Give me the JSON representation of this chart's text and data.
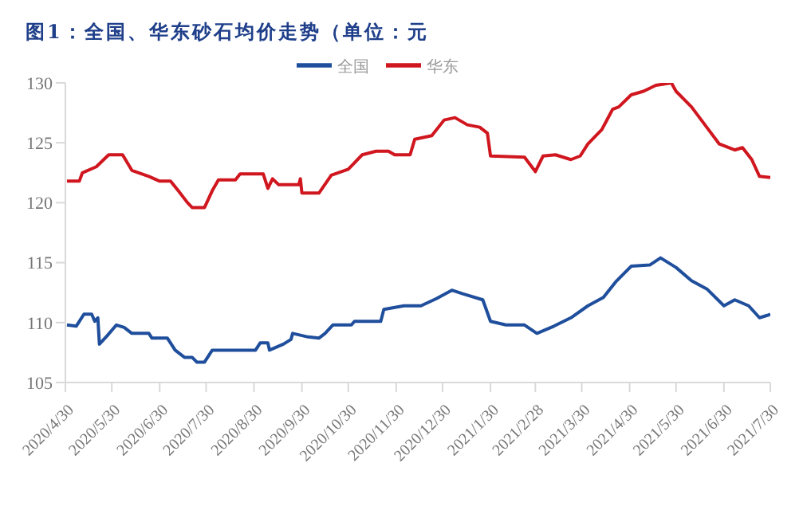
{
  "chart_data": {
    "type": "line",
    "title": "图1：全国、华东砂石均价走势（单位：元",
    "legend": "top",
    "grid": false,
    "marker": "none",
    "line_style": "solid",
    "ylim": [
      105,
      130
    ],
    "yticks": [
      105,
      110,
      115,
      120,
      125,
      130
    ],
    "xlim": [
      "2020-04-30",
      "2021-07-30"
    ],
    "xticks": [
      {
        "value": "2020-04-30",
        "label": "2020/4/30"
      },
      {
        "value": "2020-05-30",
        "label": "2020/5/30"
      },
      {
        "value": "2020-06-30",
        "label": "2020/6/30"
      },
      {
        "value": "2020-07-30",
        "label": "2020/7/30"
      },
      {
        "value": "2020-08-30",
        "label": "2020/8/30"
      },
      {
        "value": "2020-09-30",
        "label": "2020/9/30"
      },
      {
        "value": "2020-10-30",
        "label": "2020/10/30"
      },
      {
        "value": "2020-11-30",
        "label": "2020/11/30"
      },
      {
        "value": "2020-12-30",
        "label": "2020/12/30"
      },
      {
        "value": "2021-01-30",
        "label": "2021/1/30"
      },
      {
        "value": "2021-02-28",
        "label": "2021/2/28"
      },
      {
        "value": "2021-03-30",
        "label": "2021/3/30"
      },
      {
        "value": "2021-04-30",
        "label": "2021/4/30"
      },
      {
        "value": "2021-05-30",
        "label": "2021/5/30"
      },
      {
        "value": "2021-06-30",
        "label": "2021/6/30"
      },
      {
        "value": "2021-07-30",
        "label": "2021/7/30"
      }
    ],
    "series": [
      {
        "name": "全国",
        "color": "#1f4e9c",
        "x": [
          "2020-05-01",
          "2020-05-07",
          "2020-05-09",
          "2020-05-12",
          "2020-05-17",
          "2020-05-19",
          "2020-05-21",
          "2020-05-22",
          "2020-05-27",
          "2020-06-02",
          "2020-06-07",
          "2020-06-12",
          "2020-06-23",
          "2020-06-25",
          "2020-07-05",
          "2020-07-10",
          "2020-07-16",
          "2020-07-21",
          "2020-07-24",
          "2020-07-29",
          "2020-08-03",
          "2020-08-31",
          "2020-09-03",
          "2020-09-08",
          "2020-09-09",
          "2020-09-18",
          "2020-09-23",
          "2020-09-24",
          "2020-10-04",
          "2020-10-11",
          "2020-10-15",
          "2020-10-20",
          "2020-11-01",
          "2020-11-03",
          "2020-11-20",
          "2020-11-22",
          "2020-12-05",
          "2020-12-16",
          "2020-12-26",
          "2021-01-05",
          "2021-01-12",
          "2021-01-25",
          "2021-01-30",
          "2021-02-09",
          "2021-02-21",
          "2021-03-01",
          "2021-03-12",
          "2021-03-23",
          "2021-04-03",
          "2021-04-13",
          "2021-04-21",
          "2021-05-01",
          "2021-05-13",
          "2021-05-20",
          "2021-05-30",
          "2021-06-09",
          "2021-06-19",
          "2021-06-30",
          "2021-07-07",
          "2021-07-16",
          "2021-07-23",
          "2021-07-28",
          "2021-07-30"
        ],
        "values": [
          109.8,
          109.7,
          110.1,
          110.7,
          110.7,
          110.1,
          110.4,
          108.2,
          108.9,
          109.8,
          109.6,
          109.1,
          109.1,
          108.7,
          108.7,
          107.7,
          107.1,
          107.1,
          106.7,
          106.7,
          107.7,
          107.7,
          108.3,
          108.3,
          107.7,
          108.2,
          108.6,
          109.1,
          108.8,
          108.7,
          109.1,
          109.8,
          109.8,
          110.1,
          110.1,
          111.1,
          111.4,
          111.4,
          112,
          112.7,
          112.4,
          111.9,
          110.1,
          109.8,
          109.8,
          109.1,
          109.7,
          110.4,
          111.4,
          112.1,
          113.4,
          114.7,
          114.8,
          115.4,
          114.6,
          113.5,
          112.8,
          111.4,
          111.9,
          111.4,
          110.4,
          110.6,
          110.7
        ]
      },
      {
        "name": "华东",
        "color": "#d0161e",
        "x": [
          "2020-05-01",
          "2020-05-09",
          "2020-05-11",
          "2020-05-20",
          "2020-05-28",
          "2020-06-06",
          "2020-06-12",
          "2020-06-23",
          "2020-06-30",
          "2020-07-07",
          "2020-07-12",
          "2020-07-18",
          "2020-07-21",
          "2020-07-29",
          "2020-08-03",
          "2020-08-07",
          "2020-08-18",
          "2020-08-21",
          "2020-09-05",
          "2020-09-08",
          "2020-09-11",
          "2020-09-15",
          "2020-09-28",
          "2020-09-29",
          "2020-09-30",
          "2020-10-11",
          "2020-10-19",
          "2020-10-30",
          "2020-11-08",
          "2020-11-17",
          "2020-11-25",
          "2020-11-29",
          "2020-12-09",
          "2020-12-12",
          "2020-12-23",
          "2020-12-31",
          "2021-01-07",
          "2021-01-15",
          "2021-01-23",
          "2021-01-28",
          "2021-01-30",
          "2021-02-21",
          "2021-02-28",
          "2021-03-05",
          "2021-03-13",
          "2021-03-23",
          "2021-03-29",
          "2021-04-03",
          "2021-04-12",
          "2021-04-19",
          "2021-04-23",
          "2021-05-01",
          "2021-05-09",
          "2021-05-17",
          "2021-05-27",
          "2021-05-30",
          "2021-06-09",
          "2021-06-20",
          "2021-06-27",
          "2021-07-07",
          "2021-07-12",
          "2021-07-18",
          "2021-07-23",
          "2021-07-30"
        ],
        "values": [
          121.8,
          121.8,
          122.5,
          123,
          124,
          124,
          122.7,
          122.2,
          121.8,
          121.8,
          121,
          120,
          119.6,
          119.6,
          121,
          121.9,
          121.9,
          122.4,
          122.4,
          121.2,
          122,
          121.5,
          121.5,
          122,
          120.8,
          120.8,
          122.3,
          122.8,
          124,
          124.3,
          124.3,
          124,
          124,
          125.3,
          125.6,
          126.9,
          127.1,
          126.5,
          126.3,
          125.8,
          123.9,
          123.8,
          122.6,
          123.9,
          124,
          123.6,
          123.9,
          124.9,
          126.1,
          127.8,
          128,
          129,
          129.3,
          129.8,
          130,
          129.3,
          128,
          126.1,
          124.9,
          124.4,
          124.6,
          123.6,
          122.2,
          122.1
        ]
      }
    ]
  }
}
